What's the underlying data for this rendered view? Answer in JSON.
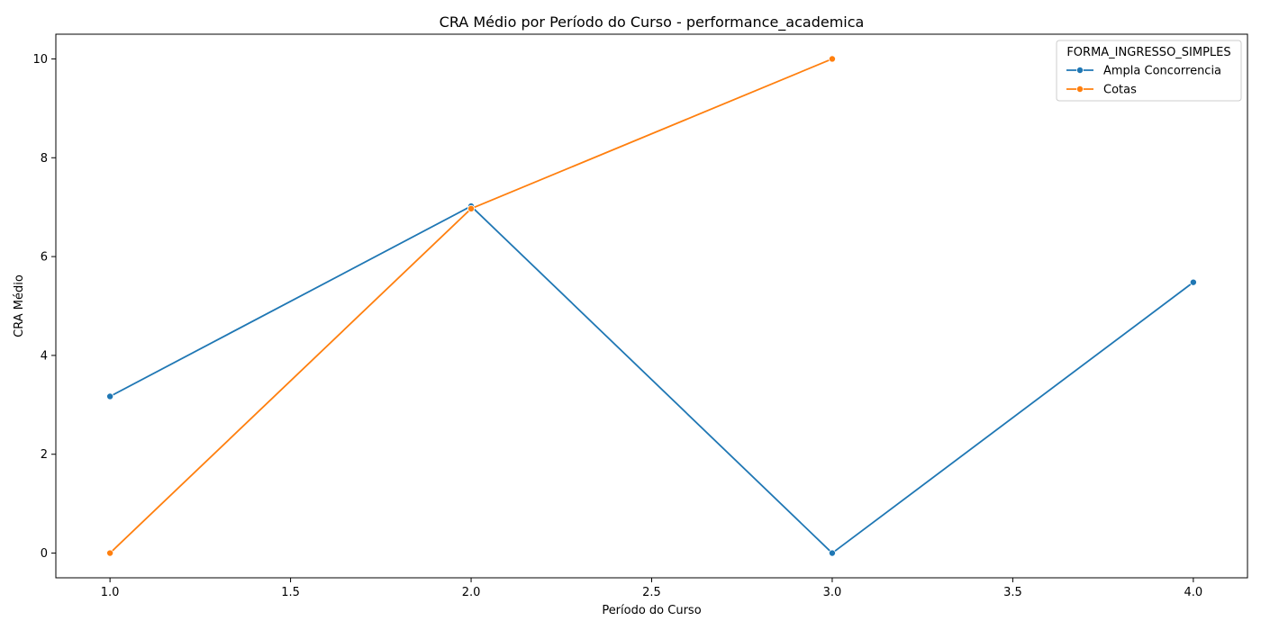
{
  "chart_data": {
    "type": "line",
    "title": "CRA Médio por Período do Curso - performance_academica",
    "xlabel": "Período do Curso",
    "ylabel": "CRA Médio",
    "xlim": [
      0.85,
      4.15
    ],
    "ylim": [
      -0.5,
      10.5
    ],
    "x_ticks": [
      1.0,
      1.5,
      2.0,
      2.5,
      3.0,
      3.5,
      4.0
    ],
    "x_tick_labels": [
      "1.0",
      "1.5",
      "2.0",
      "2.5",
      "3.0",
      "3.5",
      "4.0"
    ],
    "y_ticks": [
      0,
      2,
      4,
      6,
      8,
      10
    ],
    "y_tick_labels": [
      "0",
      "2",
      "4",
      "6",
      "8",
      "10"
    ],
    "grid": false,
    "legend": {
      "title": "FORMA_INGRESSO_SIMPLES",
      "placement": "upper-right"
    },
    "series": [
      {
        "name": "Ampla Concorrencia",
        "color": "#1f77b4",
        "points": [
          {
            "x": 1.0,
            "y": 3.17
          },
          {
            "x": 2.0,
            "y": 7.02
          },
          {
            "x": 3.0,
            "y": 0.0
          },
          {
            "x": 4.0,
            "y": 5.48
          }
        ]
      },
      {
        "name": "Cotas",
        "color": "#ff7f0e",
        "points": [
          {
            "x": 1.0,
            "y": 0.0
          },
          {
            "x": 2.0,
            "y": 6.97
          },
          {
            "x": 3.0,
            "y": 10.0
          }
        ]
      }
    ]
  }
}
